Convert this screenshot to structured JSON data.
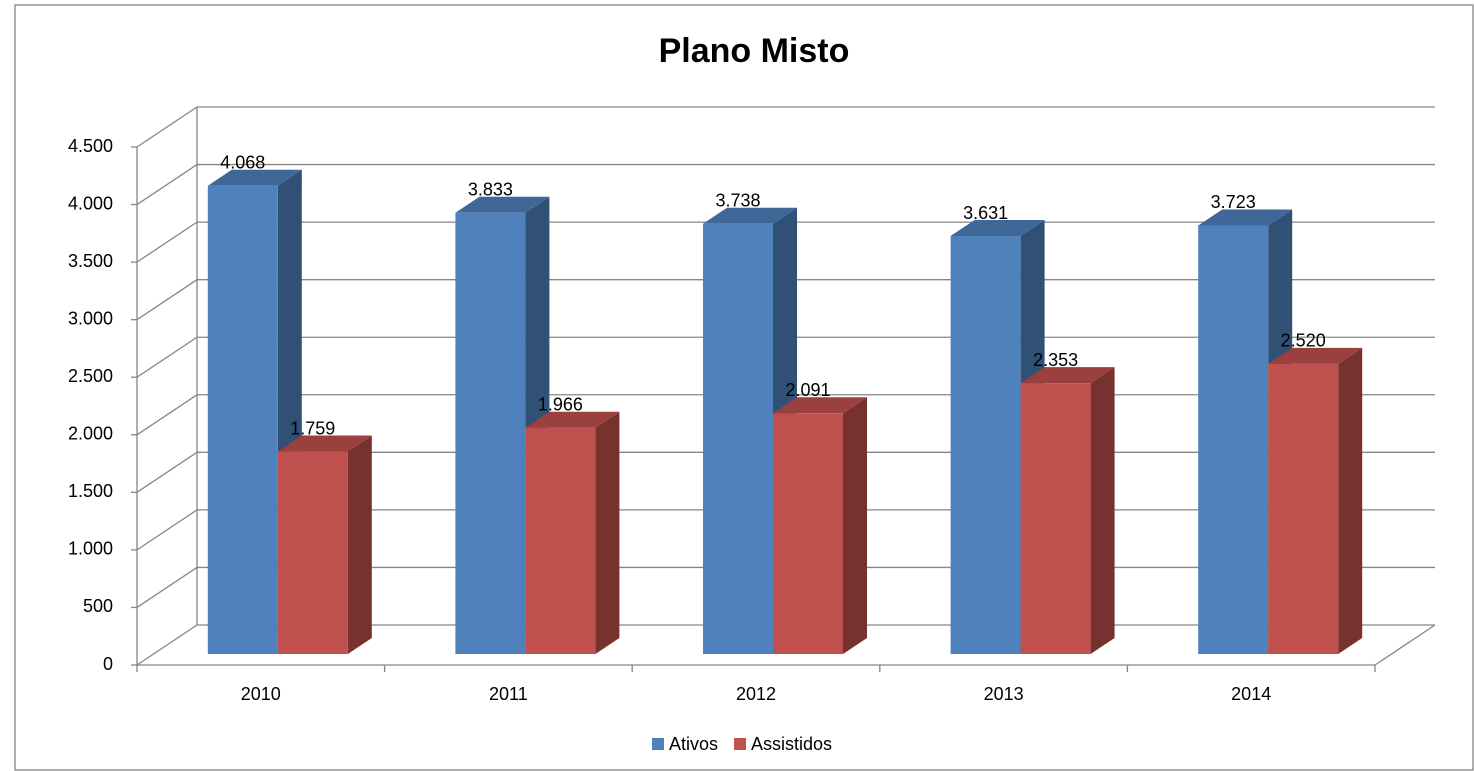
{
  "chart_data": {
    "type": "bar3d",
    "title": "Plano Misto",
    "categories": [
      "2010",
      "2011",
      "2012",
      "2013",
      "2014"
    ],
    "series": [
      {
        "name": "Ativos",
        "color": "#4f81bd",
        "values": [
          4068,
          3833,
          3738,
          3631,
          3723
        ],
        "value_labels": [
          "4.068",
          "3.833",
          "3.738",
          "3.631",
          "3.723"
        ]
      },
      {
        "name": "Assistidos",
        "color": "#c0504d",
        "values": [
          1759,
          1966,
          2091,
          2353,
          2520
        ],
        "value_labels": [
          "1.759",
          "1.966",
          "2.091",
          "2.353",
          "2.520"
        ]
      }
    ],
    "ylim": [
      0,
      4500
    ],
    "yticks": [
      0,
      500,
      {
        "value": 1000,
        "label": "1.000"
      },
      {
        "value": 1500,
        "label": "1.500"
      },
      {
        "value": 2000,
        "label": "2.000"
      },
      {
        "value": 2500,
        "label": "2.500"
      },
      {
        "value": 3000,
        "label": "3.000"
      },
      {
        "value": 3500,
        "label": "3.500"
      },
      {
        "value": 4000,
        "label": "4.000"
      },
      {
        "value": 4500,
        "label": "4.500"
      }
    ],
    "grid": true,
    "legend": "bottom"
  }
}
